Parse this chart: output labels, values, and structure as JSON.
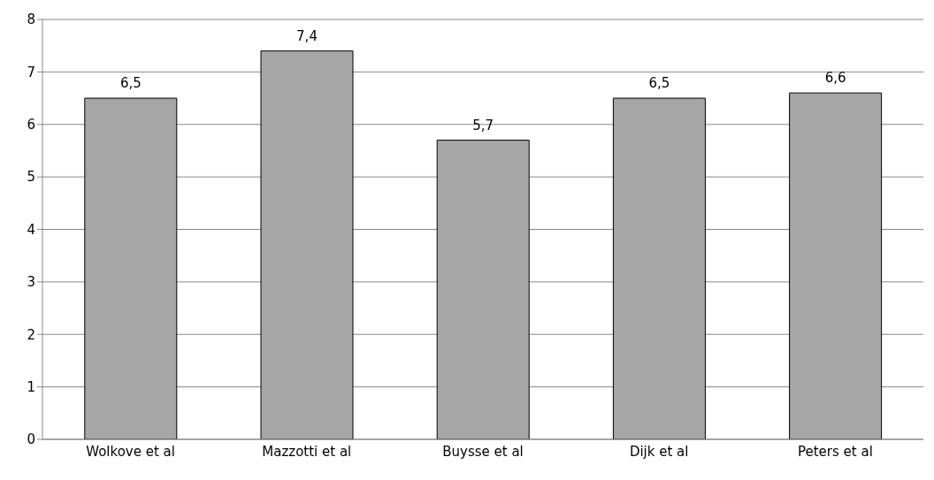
{
  "chart_data": {
    "type": "bar",
    "categories": [
      "Wolkove et al",
      "Mazzotti et al",
      "Buysse et al",
      "Dijk et al",
      "Peters et al"
    ],
    "values": [
      6.5,
      7.4,
      5.7,
      6.5,
      6.6
    ],
    "value_labels": [
      "6,5",
      "7,4",
      "5,7",
      "6,5",
      "6,6"
    ],
    "color": "#a6a6a6",
    "ylim": [
      0,
      8
    ],
    "yticks": [
      0,
      1,
      2,
      3,
      4,
      5,
      6,
      7,
      8
    ],
    "grid": "y"
  }
}
